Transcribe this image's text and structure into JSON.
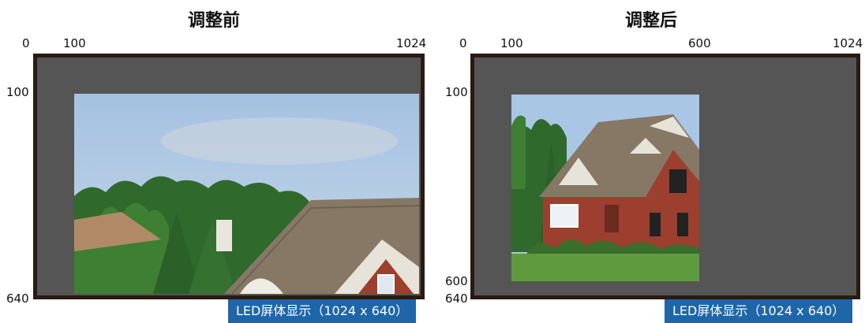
{
  "panels": [
    {
      "title": "调整前",
      "ticks": {
        "x0": "0",
        "x1": "100",
        "x2": "1024",
        "y1": "100",
        "y2": "640"
      },
      "caption": "LED屏体显示（1024 x 640）"
    },
    {
      "title": "调整后",
      "ticks": {
        "x0": "0",
        "x1": "100",
        "x2": "600",
        "x3": "1024",
        "y1": "100",
        "y2": "600",
        "y3": "640"
      },
      "caption": "LED屏体显示（1024 x 640）"
    }
  ],
  "colors": {
    "screen": "#555555",
    "frame": "#2a1a12",
    "caption_bg": "#1e66a8",
    "sky": "#a9c6e4",
    "trees": "#2f6a2c",
    "roof": "#8a7b68",
    "brick": "#9c3f2e",
    "lawn": "#5f9a3e"
  }
}
